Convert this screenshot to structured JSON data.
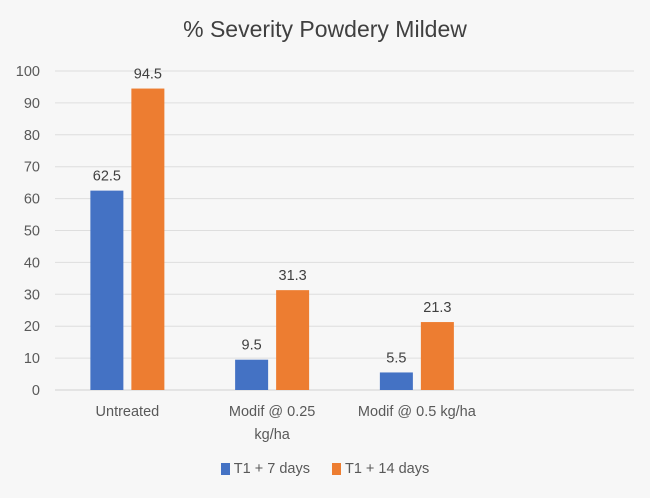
{
  "chart_data": {
    "type": "bar",
    "title": "% Severity Powdery Mildew",
    "categories": [
      "Untreated",
      "Modif @ 0.25\nkg/ha",
      "Modif @ 0.5 kg/ha"
    ],
    "series": [
      {
        "name": "T1 + 7 days",
        "color": "#4472C4",
        "values": [
          62.5,
          9.5,
          5.5
        ]
      },
      {
        "name": "T1 + 14 days",
        "color": "#ED7D31",
        "values": [
          94.5,
          31.3,
          21.3
        ]
      }
    ],
    "xlabel": "",
    "ylabel": "",
    "ylim": [
      0,
      100
    ],
    "yticks": [
      0,
      10,
      20,
      30,
      40,
      50,
      60,
      70,
      80,
      90,
      100
    ],
    "grid": true,
    "legend": "bottom",
    "data_labels": true
  }
}
